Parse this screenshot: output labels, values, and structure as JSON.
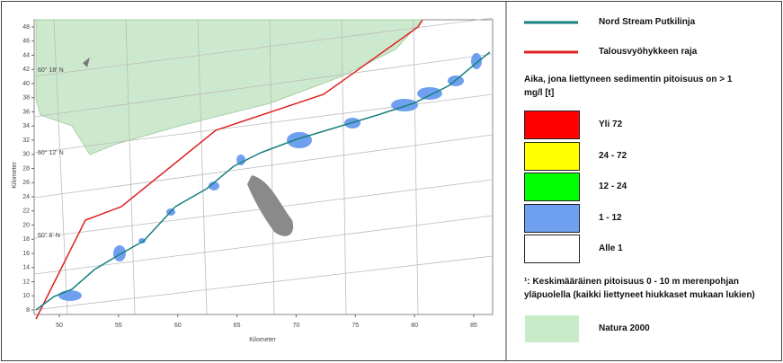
{
  "map": {
    "x_label": "Kilometer",
    "y_label": "Kilometer",
    "xticks": [
      50,
      55,
      60,
      65,
      70,
      75,
      80,
      85
    ],
    "yticks": [
      8,
      10,
      12,
      14,
      16,
      18,
      20,
      22,
      24,
      26,
      28,
      30,
      32,
      34,
      36,
      38,
      40,
      42,
      44,
      46,
      48
    ],
    "lat_labels": [
      "60° 18' N",
      "60° 12' N",
      "60° 6' N"
    ]
  },
  "legend": {
    "lines": [
      {
        "label": "Nord Stream Putkilinja",
        "color": "#17807e"
      },
      {
        "label": "Talousvyöhykkeen raja",
        "color": "#e02020"
      }
    ],
    "heading": "Aika, jona liettyneen sedimentin pitoisuus on > 1 mg/l [t]",
    "classes": [
      {
        "label": "Yli 72",
        "color": "#ff0000"
      },
      {
        "label": "24 - 72",
        "color": "#ffff00"
      },
      {
        "label": "12 - 24",
        "color": "#00ff00"
      },
      {
        "label": "1 - 12",
        "color": "#6fa0f0"
      },
      {
        "label": "Alle 1",
        "color": "#ffffff"
      }
    ],
    "footnote": "¹: Keskimääräinen pitoisuus 0 - 10 m merenpohjan yläpuolella (kaikki liettyneet hiukkaset mukaan lukien)",
    "area": {
      "label": "Natura 2000",
      "color": "#c8ecc8"
    }
  }
}
